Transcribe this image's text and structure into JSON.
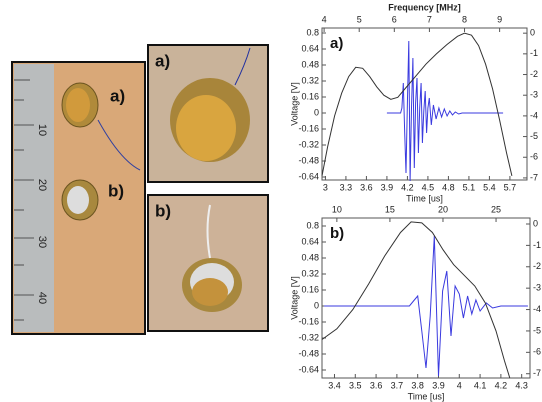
{
  "photos": {
    "main_labels": [
      "a)",
      "b)"
    ],
    "panel_labels": [
      "a)",
      "b)"
    ],
    "ruler": [
      "10",
      "20",
      "30",
      "40"
    ]
  },
  "chart_data": [
    {
      "type": "line",
      "annotation": "a)",
      "xlabel": "Time [us]",
      "x2label": "Frequency [MHz]",
      "ylabel": "Voltage [V]",
      "xlim": [
        2.95,
        5.95
      ],
      "xticks": [
        3,
        3.3,
        3.6,
        3.9,
        4.2,
        4.5,
        4.8,
        5.1,
        5.4,
        5.7
      ],
      "x2lim": [
        3.94,
        9.78
      ],
      "x2ticks": [
        4,
        5,
        6,
        7,
        8,
        9
      ],
      "ylim": [
        -0.67,
        0.85
      ],
      "yticks": [
        0.8,
        0.64,
        0.48,
        0.32,
        0.16,
        0,
        -0.16,
        -0.32,
        -0.48,
        -0.64
      ],
      "y2lim": [
        -7.1,
        0.25
      ],
      "y2ticks": [
        0,
        -1,
        -2,
        -3,
        -4,
        -5,
        -6,
        -7
      ],
      "series": [
        {
          "color": "#3a3adf",
          "axis": "y",
          "xaxis": "x",
          "x": [
            3.9,
            4.1,
            4.12,
            4.14,
            4.16,
            4.18,
            4.2,
            4.22,
            4.24,
            4.26,
            4.28,
            4.3,
            4.32,
            4.34,
            4.36,
            4.38,
            4.4,
            4.42,
            4.44,
            4.46,
            4.48,
            4.5,
            4.52,
            4.55,
            4.58,
            4.62,
            4.66,
            4.7,
            4.74,
            4.78,
            4.82,
            4.86,
            4.9,
            4.95,
            5.0,
            5.6
          ],
          "values": [
            0,
            0,
            0.05,
            0.3,
            -0.2,
            -0.6,
            0.1,
            0.72,
            -0.68,
            0.05,
            0.55,
            -0.55,
            0.1,
            0.35,
            -0.4,
            0.05,
            0.3,
            -0.3,
            0.02,
            0.22,
            -0.2,
            0.05,
            0.15,
            -0.12,
            0.08,
            -0.06,
            0.05,
            -0.04,
            0.04,
            -0.03,
            0.02,
            -0.02,
            0.01,
            -0.01,
            0,
            0
          ]
        },
        {
          "color": "#333333",
          "axis": "y2",
          "xaxis": "x2",
          "x": [
            3.94,
            4.1,
            4.3,
            4.5,
            4.7,
            4.9,
            5.1,
            5.3,
            5.5,
            5.7,
            5.9,
            6.1,
            6.3,
            6.6,
            6.9,
            7.2,
            7.5,
            7.8,
            8.0,
            8.2,
            8.4,
            8.6,
            8.8,
            9.0,
            9.2,
            9.35
          ],
          "values": [
            -6.9,
            -5.5,
            -4,
            -2.9,
            -2.1,
            -1.65,
            -1.7,
            -2.1,
            -2.6,
            -3,
            -3.2,
            -3.1,
            -2.7,
            -2.1,
            -1.5,
            -1,
            -0.55,
            -0.15,
            0,
            -0.1,
            -0.6,
            -1.5,
            -2.7,
            -4.2,
            -5.8,
            -6.9
          ]
        }
      ]
    },
    {
      "type": "line",
      "annotation": "b)",
      "xlabel": "Time [us]",
      "ylabel": "Voltage [V]",
      "xlim": [
        3.34,
        4.34
      ],
      "xticks": [
        3.4,
        3.5,
        3.6,
        3.7,
        3.8,
        3.9,
        4,
        4.1,
        4.2,
        4.3
      ],
      "x2lim": [
        8.6,
        28.2
      ],
      "x2ticks": [
        10,
        15,
        20,
        25
      ],
      "ylim": [
        -0.72,
        0.88
      ],
      "yticks": [
        0.8,
        0.64,
        0.48,
        0.32,
        0.16,
        0,
        -0.16,
        -0.32,
        -0.48,
        -0.64
      ],
      "y2lim": [
        -7.2,
        0.28
      ],
      "y2ticks": [
        0,
        -1,
        -2,
        -3,
        -4,
        -5,
        -6,
        -7
      ],
      "series": [
        {
          "color": "#3a3adf",
          "axis": "y",
          "xaxis": "x",
          "x": [
            3.35,
            3.76,
            3.78,
            3.8,
            3.82,
            3.84,
            3.86,
            3.88,
            3.9,
            3.92,
            3.94,
            3.96,
            3.98,
            4.0,
            4.02,
            4.04,
            4.06,
            4.08,
            4.1,
            4.13,
            4.16,
            4.2,
            4.33
          ],
          "values": [
            0,
            0,
            0.05,
            0.1,
            -0.25,
            -0.62,
            -0.1,
            0.7,
            -0.7,
            0.15,
            0.35,
            -0.3,
            0.2,
            0.12,
            -0.12,
            0.1,
            -0.08,
            0.06,
            -0.05,
            0.03,
            -0.02,
            0,
            0
          ]
        },
        {
          "color": "#333333",
          "axis": "y2",
          "xaxis": "x2",
          "x": [
            8.6,
            10,
            11.5,
            13,
            14.5,
            16,
            17,
            18,
            19,
            20,
            21,
            22,
            23,
            24,
            25,
            25.8,
            26.3
          ],
          "values": [
            -5.4,
            -4.9,
            -4,
            -2.8,
            -1.5,
            -0.4,
            0.1,
            0.05,
            -0.4,
            -1.2,
            -1.9,
            -2.4,
            -2.9,
            -3.7,
            -5,
            -6.4,
            -7.2
          ]
        }
      ]
    }
  ]
}
